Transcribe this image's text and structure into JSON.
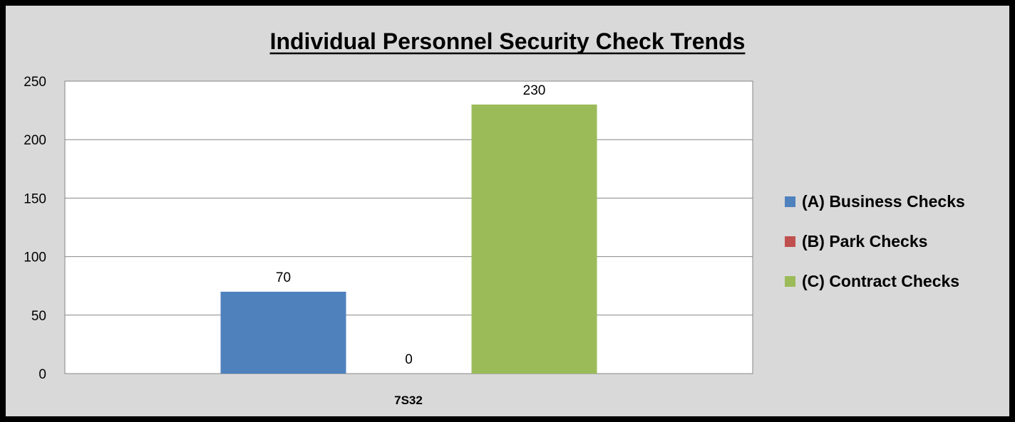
{
  "chart_data": {
    "type": "bar",
    "title": "Individual Personnel Security Check Trends",
    "categories": [
      "7S32"
    ],
    "series": [
      {
        "name": "(A) Business Checks",
        "values": [
          70
        ],
        "color": "#4f81bd"
      },
      {
        "name": "(B) Park Checks",
        "values": [
          0
        ],
        "color": "#c0504d"
      },
      {
        "name": "(C)  Contract Checks",
        "values": [
          230
        ],
        "color": "#9bbb59"
      }
    ],
    "ylim": [
      0,
      250
    ],
    "yticks": [
      0,
      50,
      100,
      150,
      200,
      250
    ],
    "grid": true,
    "legend_position": "right"
  }
}
